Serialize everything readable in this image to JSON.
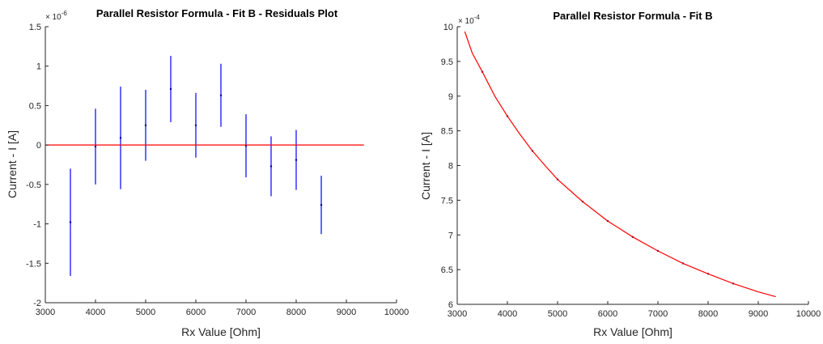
{
  "figure": {
    "background": "#ffffff",
    "axis_color": "#262626"
  },
  "chart_data": [
    {
      "type": "scatter",
      "title": "Parallel Resistor Formula - Fit B - Residuals Plot",
      "xlabel": "Rx Value [Ohm]",
      "ylabel": "Current - I [A]",
      "y_exponent": "× 10",
      "y_exponent_power": "-6",
      "xlim": [
        3000,
        10000
      ],
      "ylim": [
        -2,
        1.5
      ],
      "x_ticks": [
        3000,
        4000,
        5000,
        6000,
        7000,
        8000,
        9000,
        10000
      ],
      "x_tick_labels": [
        "3000",
        "4000",
        "5000",
        "6000",
        "7000",
        "8000",
        "9000",
        "10000"
      ],
      "y_ticks": [
        -2,
        -1.5,
        -1,
        -0.5,
        0,
        0.5,
        1,
        1.5
      ],
      "y_tick_labels": [
        "-2",
        "-1.5",
        "-1",
        "-0.5",
        "0",
        "0.5",
        "1",
        "1.5"
      ],
      "grid": false,
      "series": [
        {
          "kind": "errorbar",
          "color": "#0000ff",
          "x": [
            3500,
            4000,
            4500,
            5000,
            5500,
            6000,
            6500,
            7000,
            7500,
            8000,
            8500
          ],
          "y": [
            -0.98,
            -0.02,
            0.09,
            0.25,
            0.71,
            0.25,
            0.63,
            -0.01,
            -0.27,
            -0.19,
            -0.76
          ],
          "err": [
            0.68,
            0.48,
            0.65,
            0.45,
            0.42,
            0.41,
            0.4,
            0.4,
            0.38,
            0.38,
            0.37
          ]
        },
        {
          "kind": "line",
          "color": "#ff0000",
          "x": [
            3000,
            9350
          ],
          "y": [
            0,
            0
          ]
        }
      ]
    },
    {
      "type": "line",
      "title": "Parallel Resistor Formula - Fit B",
      "xlabel": "Rx Value [Ohm]",
      "ylabel": "Current - I [A]",
      "y_exponent": "× 10",
      "y_exponent_power": "-4",
      "xlim": [
        3000,
        10000
      ],
      "ylim": [
        6,
        10
      ],
      "x_ticks": [
        3000,
        4000,
        5000,
        6000,
        7000,
        8000,
        9000,
        10000
      ],
      "x_tick_labels": [
        "3000",
        "4000",
        "5000",
        "6000",
        "7000",
        "8000",
        "9000",
        "10000"
      ],
      "y_ticks": [
        6,
        6.5,
        7,
        7.5,
        8,
        8.5,
        9,
        9.5,
        10
      ],
      "y_tick_labels": [
        "6",
        "6.5",
        "7",
        "7.5",
        "8",
        "8.5",
        "9",
        "9.5",
        "10"
      ],
      "grid": false,
      "series": [
        {
          "kind": "points",
          "color": "#0000ff",
          "x": [
            3500,
            4000,
            4500,
            5000,
            5500,
            6000,
            6500,
            7000,
            7500,
            8000,
            8500
          ],
          "y": [
            9.35,
            8.71,
            8.21,
            7.8,
            7.48,
            7.2,
            6.97,
            6.77,
            6.59,
            6.44,
            6.3
          ]
        },
        {
          "kind": "line",
          "color": "#ff0000",
          "x": [
            3150,
            3300,
            3500,
            3750,
            4000,
            4250,
            4500,
            4750,
            5000,
            5500,
            6000,
            6500,
            7000,
            7500,
            8000,
            8500,
            9000,
            9350
          ],
          "y": [
            9.93,
            9.62,
            9.35,
            9.0,
            8.71,
            8.45,
            8.21,
            8.0,
            7.8,
            7.48,
            7.2,
            6.97,
            6.77,
            6.59,
            6.44,
            6.3,
            6.18,
            6.11
          ]
        }
      ]
    }
  ]
}
